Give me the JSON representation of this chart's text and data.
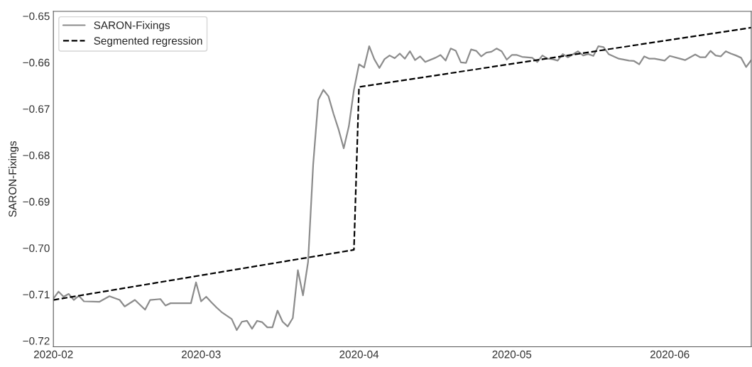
{
  "chart_data": {
    "type": "line",
    "ylabel": "SARON-Fixings",
    "x": [
      "2020-02-01",
      "2020-02-02",
      "2020-02-03",
      "2020-02-04",
      "2020-02-05",
      "2020-02-06",
      "2020-02-07",
      "2020-02-10",
      "2020-02-12",
      "2020-02-14",
      "2020-02-15",
      "2020-02-17",
      "2020-02-19",
      "2020-02-20",
      "2020-02-22",
      "2020-02-23",
      "2020-02-24",
      "2020-02-28",
      "2020-02-29",
      "2020-03-01",
      "2020-03-02",
      "2020-03-03",
      "2020-03-04",
      "2020-03-05",
      "2020-03-07",
      "2020-03-08",
      "2020-03-09",
      "2020-03-10",
      "2020-03-11",
      "2020-03-12",
      "2020-03-13",
      "2020-03-14",
      "2020-03-15",
      "2020-03-16",
      "2020-03-17",
      "2020-03-18",
      "2020-03-19",
      "2020-03-20",
      "2020-03-21",
      "2020-03-22",
      "2020-03-23",
      "2020-03-24",
      "2020-03-25",
      "2020-03-26",
      "2020-03-27",
      "2020-03-28",
      "2020-03-29",
      "2020-03-30",
      "2020-03-31",
      "2020-04-01",
      "2020-04-02",
      "2020-04-03",
      "2020-04-04",
      "2020-04-05",
      "2020-04-06",
      "2020-04-07",
      "2020-04-08",
      "2020-04-09",
      "2020-04-10",
      "2020-04-11",
      "2020-04-12",
      "2020-04-13",
      "2020-04-14",
      "2020-04-16",
      "2020-04-17",
      "2020-04-18",
      "2020-04-19",
      "2020-04-20",
      "2020-04-21",
      "2020-04-22",
      "2020-04-23",
      "2020-04-24",
      "2020-04-25",
      "2020-04-26",
      "2020-04-27",
      "2020-04-28",
      "2020-04-29",
      "2020-04-30",
      "2020-05-01",
      "2020-05-02",
      "2020-05-03",
      "2020-05-05",
      "2020-05-06",
      "2020-05-07",
      "2020-05-08",
      "2020-05-09",
      "2020-05-10",
      "2020-05-11",
      "2020-05-12",
      "2020-05-14",
      "2020-05-15",
      "2020-05-16",
      "2020-05-17",
      "2020-05-18",
      "2020-05-19",
      "2020-05-20",
      "2020-05-21",
      "2020-05-22",
      "2020-05-24",
      "2020-05-25",
      "2020-05-26",
      "2020-05-27",
      "2020-05-28",
      "2020-05-29",
      "2020-05-31",
      "2020-06-01",
      "2020-06-03",
      "2020-06-04",
      "2020-06-05",
      "2020-06-06",
      "2020-06-07",
      "2020-06-08",
      "2020-06-09",
      "2020-06-10",
      "2020-06-11",
      "2020-06-12",
      "2020-06-13",
      "2020-06-14",
      "2020-06-15",
      "2020-06-16",
      "2020-06-17"
    ],
    "series": [
      {
        "name": "SARON-Fixings",
        "color": "#8c8c8c",
        "line_style": "solid",
        "values": [
          -0.7109,
          -0.7094,
          -0.7105,
          -0.7099,
          -0.7112,
          -0.7103,
          -0.7115,
          -0.7116,
          -0.7104,
          -0.7112,
          -0.7126,
          -0.7112,
          -0.7133,
          -0.7112,
          -0.711,
          -0.7124,
          -0.7119,
          -0.7119,
          -0.7074,
          -0.7115,
          -0.7105,
          -0.7117,
          -0.7128,
          -0.7138,
          -0.7153,
          -0.7177,
          -0.7159,
          -0.7157,
          -0.7174,
          -0.7157,
          -0.716,
          -0.7171,
          -0.7171,
          -0.7135,
          -0.7159,
          -0.7169,
          -0.7151,
          -0.7048,
          -0.7102,
          -0.703,
          -0.682,
          -0.6681,
          -0.6659,
          -0.6673,
          -0.6711,
          -0.6745,
          -0.6785,
          -0.6738,
          -0.6659,
          -0.6604,
          -0.6611,
          -0.6565,
          -0.6593,
          -0.6612,
          -0.6593,
          -0.6585,
          -0.6591,
          -0.6581,
          -0.6592,
          -0.6576,
          -0.6595,
          -0.6587,
          -0.6599,
          -0.659,
          -0.6584,
          -0.6596,
          -0.657,
          -0.6575,
          -0.66,
          -0.6601,
          -0.6572,
          -0.6575,
          -0.6587,
          -0.6579,
          -0.6577,
          -0.657,
          -0.6576,
          -0.6594,
          -0.6584,
          -0.6584,
          -0.6588,
          -0.659,
          -0.6599,
          -0.6585,
          -0.6592,
          -0.6593,
          -0.6596,
          -0.6582,
          -0.6589,
          -0.6576,
          -0.6585,
          -0.6582,
          -0.6586,
          -0.6565,
          -0.6567,
          -0.6582,
          -0.6587,
          -0.6592,
          -0.6596,
          -0.6597,
          -0.6604,
          -0.6587,
          -0.6592,
          -0.6592,
          -0.6596,
          -0.6586,
          -0.6592,
          -0.6595,
          -0.6589,
          -0.6583,
          -0.6589,
          -0.6589,
          -0.6575,
          -0.6585,
          -0.6587,
          -0.6576,
          -0.6581,
          -0.6585,
          -0.659,
          -0.661,
          -0.6595
        ]
      },
      {
        "name": "Segmented regression",
        "color": "#000000",
        "line_style": "dashed",
        "x": [
          "2020-02-01",
          "2020-03-31",
          "2020-04-01",
          "2020-06-17"
        ],
        "values": [
          -0.7112,
          -0.7004,
          -0.6653,
          -0.6525
        ]
      }
    ],
    "xlim": [
      "2020-02-01",
      "2020-06-17"
    ],
    "xticks": [
      {
        "value": "2020-02-01",
        "label": "2020-02"
      },
      {
        "value": "2020-03-01",
        "label": "2020-03"
      },
      {
        "value": "2020-04-01",
        "label": "2020-04"
      },
      {
        "value": "2020-05-01",
        "label": "2020-05"
      },
      {
        "value": "2020-06-01",
        "label": "2020-06"
      }
    ],
    "ylim": [
      -0.7213,
      -0.649
    ],
    "yticks": [
      {
        "value": -0.72,
        "label": "−0.72"
      },
      {
        "value": -0.71,
        "label": "−0.71"
      },
      {
        "value": -0.7,
        "label": "−0.70"
      },
      {
        "value": -0.69,
        "label": "−0.69"
      },
      {
        "value": -0.68,
        "label": "−0.68"
      },
      {
        "value": -0.67,
        "label": "−0.67"
      },
      {
        "value": -0.66,
        "label": "−0.66"
      },
      {
        "value": -0.65,
        "label": "−0.65"
      }
    ],
    "grid": false,
    "legend": "top left",
    "marker": "none"
  }
}
